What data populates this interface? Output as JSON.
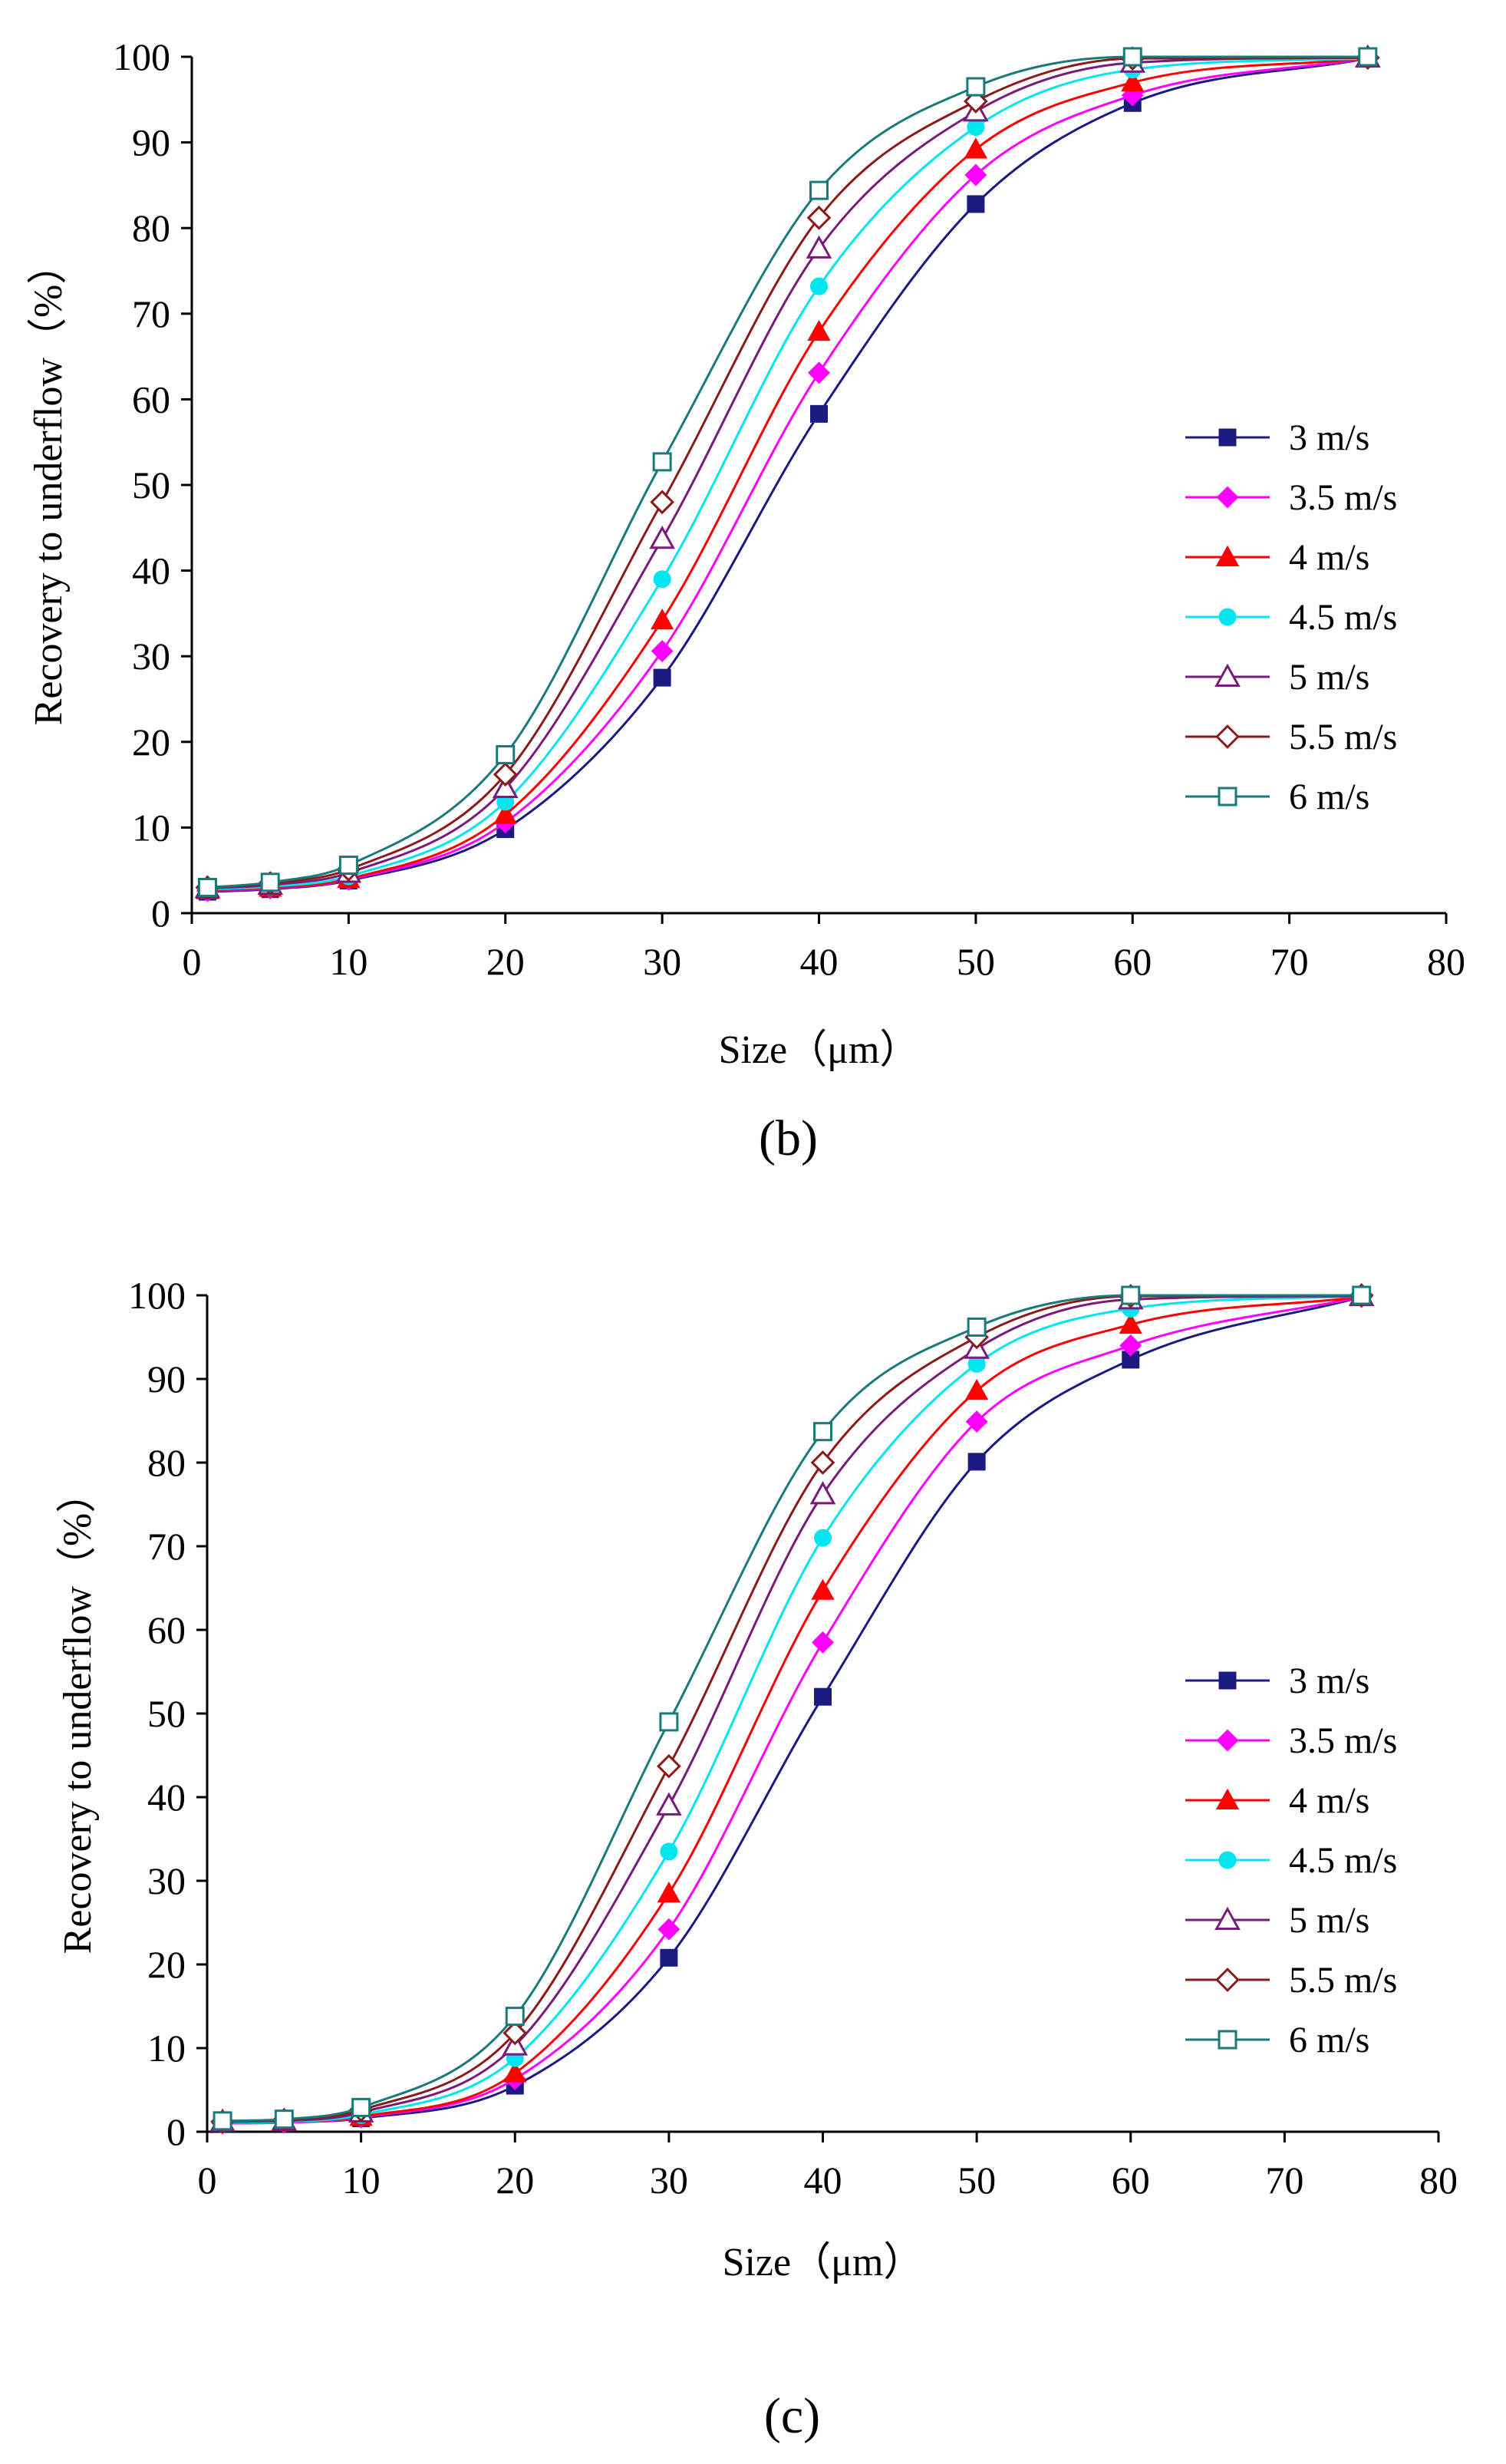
{
  "chart_data": [
    {
      "type": "line",
      "panel_label": "(b)",
      "xlabel": "Size（μm）",
      "ylabel": "Recovery to underflow（%）",
      "xlim": [
        0,
        80
      ],
      "ylim": [
        0,
        100
      ],
      "xticks": [
        "0",
        "10",
        "20",
        "30",
        "40",
        "50",
        "60",
        "70",
        "80"
      ],
      "yticks": [
        "0",
        "10",
        "20",
        "30",
        "40",
        "50",
        "60",
        "70",
        "80",
        "90",
        "100"
      ],
      "x": [
        1,
        5,
        10,
        20,
        30,
        40,
        50,
        60,
        75
      ],
      "legend_position": "right",
      "series": [
        {
          "name": "3 m/s",
          "color": "#1a1a80",
          "marker": "square-filled",
          "values": [
            2.5,
            2.8,
            3.8,
            9.8,
            27.5,
            58.3,
            82.8,
            94.6,
            99.8
          ]
        },
        {
          "name": "3.5 m/s",
          "color": "#ff00ff",
          "marker": "diamond-filled",
          "values": [
            2.6,
            2.9,
            3.9,
            10.6,
            30.6,
            63.1,
            86.2,
            95.5,
            99.8
          ]
        },
        {
          "name": "4 m/s",
          "color": "#ff0000",
          "marker": "triangle-filled",
          "values": [
            2.7,
            3.0,
            4.0,
            11.5,
            34.2,
            67.9,
            89.2,
            97.0,
            99.8
          ]
        },
        {
          "name": "4.5 m/s",
          "color": "#00e5ee",
          "marker": "circle-filled",
          "values": [
            2.8,
            3.1,
            4.3,
            13.0,
            39.0,
            73.2,
            91.8,
            98.5,
            99.8
          ]
        },
        {
          "name": "5 m/s",
          "color": "#7a1a7a",
          "marker": "triangle-open",
          "values": [
            2.9,
            3.3,
            4.7,
            14.6,
            43.7,
            77.6,
            93.6,
            99.3,
            99.9
          ]
        },
        {
          "name": "5.5 m/s",
          "color": "#8b1a1a",
          "marker": "diamond-open",
          "values": [
            3.0,
            3.5,
            5.1,
            16.2,
            48.0,
            81.2,
            94.8,
            99.8,
            99.9
          ]
        },
        {
          "name": "6 m/s",
          "color": "#1a7a7a",
          "marker": "square-open",
          "values": [
            3.0,
            3.6,
            5.6,
            18.5,
            52.7,
            84.4,
            96.5,
            100.0,
            100.0
          ]
        }
      ]
    },
    {
      "type": "line",
      "panel_label": "(c)",
      "xlabel": "Size（μm）",
      "ylabel": "Recovery to underflow（%）",
      "xlim": [
        0,
        80
      ],
      "ylim": [
        0,
        100
      ],
      "xticks": [
        "0",
        "10",
        "20",
        "30",
        "40",
        "50",
        "60",
        "70",
        "80"
      ],
      "yticks": [
        "0",
        "10",
        "20",
        "30",
        "40",
        "50",
        "60",
        "70",
        "80",
        "90",
        "100"
      ],
      "x": [
        1,
        5,
        10,
        20,
        30,
        40,
        50,
        60,
        75
      ],
      "legend_position": "right",
      "series": [
        {
          "name": "3 m/s",
          "color": "#1a1a80",
          "marker": "square-filled",
          "values": [
            1.0,
            1.1,
            1.6,
            5.5,
            20.8,
            52.0,
            80.1,
            92.3,
            99.8
          ]
        },
        {
          "name": "3.5 m/s",
          "color": "#ff00ff",
          "marker": "diamond-filled",
          "values": [
            1.0,
            1.1,
            1.7,
            6.3,
            24.2,
            58.5,
            84.9,
            94.0,
            99.8
          ]
        },
        {
          "name": "4 m/s",
          "color": "#ff0000",
          "marker": "triangle-filled",
          "values": [
            1.1,
            1.2,
            1.8,
            7.0,
            28.5,
            64.7,
            88.6,
            96.5,
            99.8
          ]
        },
        {
          "name": "4.5 m/s",
          "color": "#00e5ee",
          "marker": "circle-filled",
          "values": [
            1.1,
            1.2,
            2.0,
            8.8,
            33.5,
            71.0,
            91.8,
            98.4,
            99.9
          ]
        },
        {
          "name": "5 m/s",
          "color": "#7a1a7a",
          "marker": "triangle-open",
          "values": [
            1.2,
            1.3,
            2.3,
            10.3,
            39.0,
            76.2,
            93.6,
            99.5,
            99.9
          ]
        },
        {
          "name": "5.5 m/s",
          "color": "#8b1a1a",
          "marker": "diamond-open",
          "values": [
            1.2,
            1.4,
            2.6,
            11.8,
            43.7,
            80.0,
            95.0,
            99.9,
            100.0
          ]
        },
        {
          "name": "6 m/s",
          "color": "#1a7a7a",
          "marker": "square-open",
          "values": [
            1.3,
            1.5,
            2.9,
            13.8,
            49.0,
            83.7,
            96.2,
            100.0,
            100.0
          ]
        }
      ]
    }
  ]
}
